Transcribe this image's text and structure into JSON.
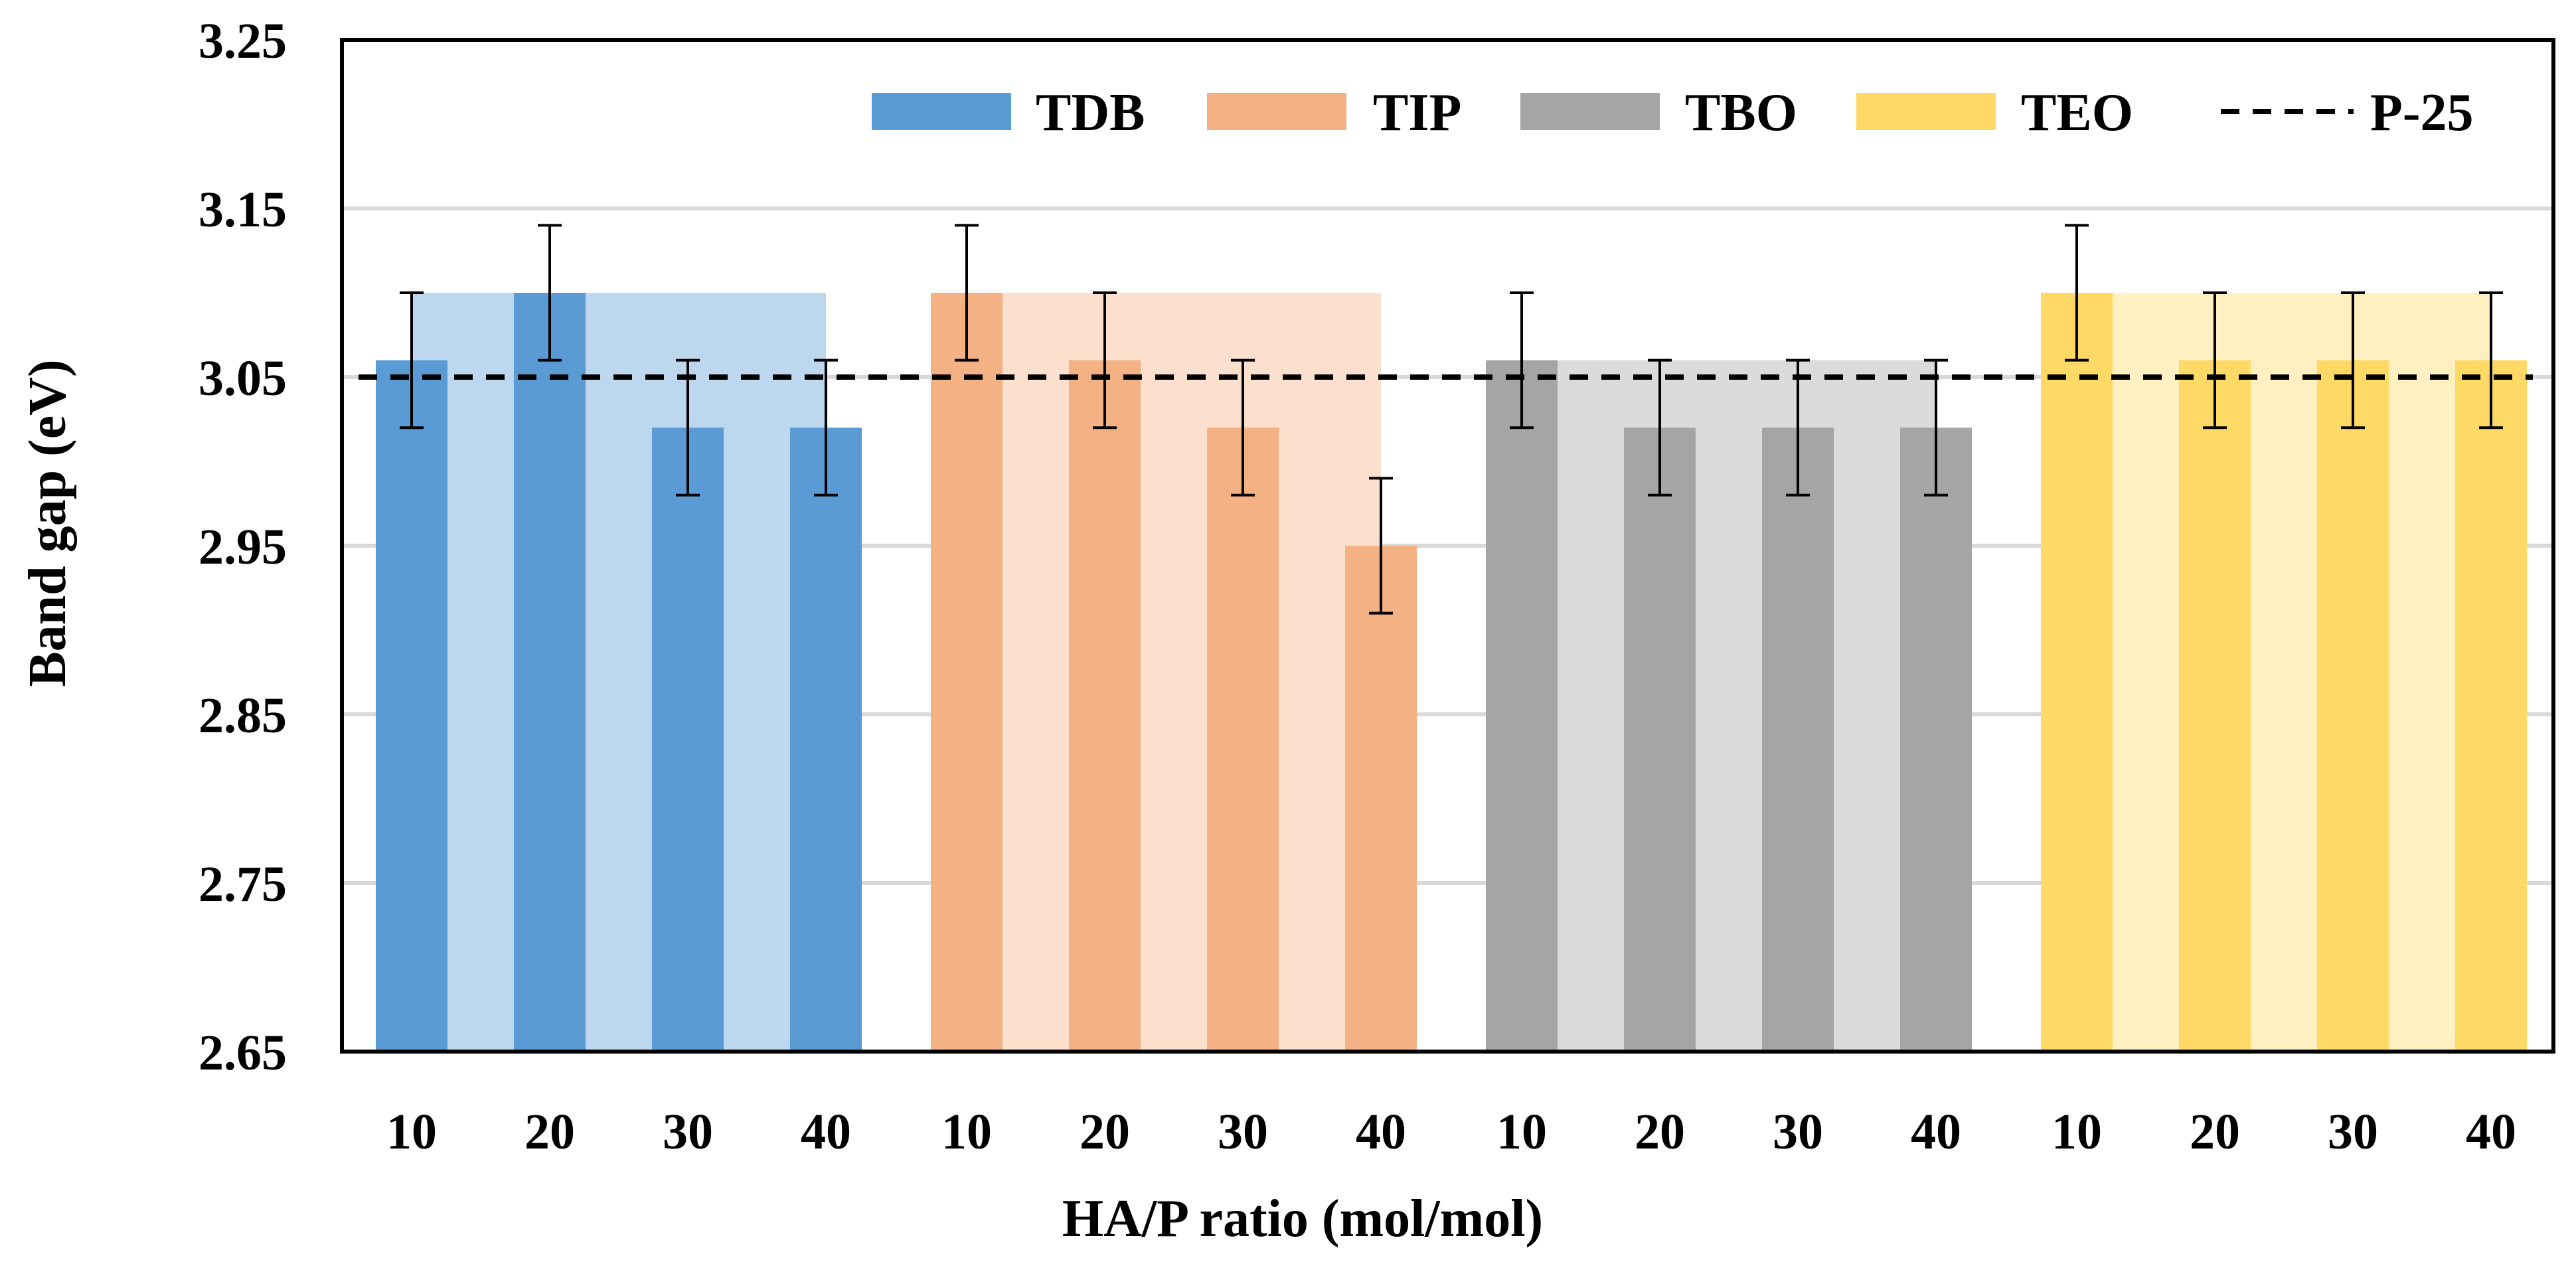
{
  "chart_data": {
    "type": "bar",
    "title": "",
    "xlabel": "HA/P ratio (mol/mol)",
    "ylabel": "Band gap (eV)",
    "ylim": [
      2.65,
      3.25
    ],
    "yticks": [
      "2.65",
      "2.75",
      "2.85",
      "2.95",
      "3.05",
      "3.15",
      "3.25"
    ],
    "grid": "horizontal",
    "legend_position": "top",
    "categories": [
      "10",
      "20",
      "30",
      "40"
    ],
    "series": [
      {
        "name": "TDB",
        "color": "#5b9bd5",
        "background_color": "#bdd7ee",
        "values": [
          3.06,
          3.1,
          3.02,
          3.02
        ],
        "errors": [
          0.04,
          0.04,
          0.04,
          0.04
        ],
        "background_value": 3.1
      },
      {
        "name": "TIP",
        "color": "#f4b183",
        "background_color": "#fbe0ce",
        "values": [
          3.1,
          3.06,
          3.02,
          2.95
        ],
        "errors": [
          0.04,
          0.04,
          0.04,
          0.04
        ],
        "background_value": 3.1
      },
      {
        "name": "TBO",
        "color": "#a5a5a5",
        "background_color": "#dbdbdb",
        "values": [
          3.06,
          3.02,
          3.02,
          3.02
        ],
        "errors": [
          0.04,
          0.04,
          0.04,
          0.04
        ],
        "background_value": 3.06
      },
      {
        "name": "TEO",
        "color": "#ffd966",
        "background_color": "#fff0c2",
        "values": [
          3.1,
          3.06,
          3.06,
          3.06
        ],
        "errors": [
          0.04,
          0.04,
          0.04,
          0.04
        ],
        "background_value": 3.1
      }
    ],
    "reference_line": {
      "name": "P-25",
      "value": 3.05,
      "style": "dashed",
      "color": "#000000"
    }
  }
}
